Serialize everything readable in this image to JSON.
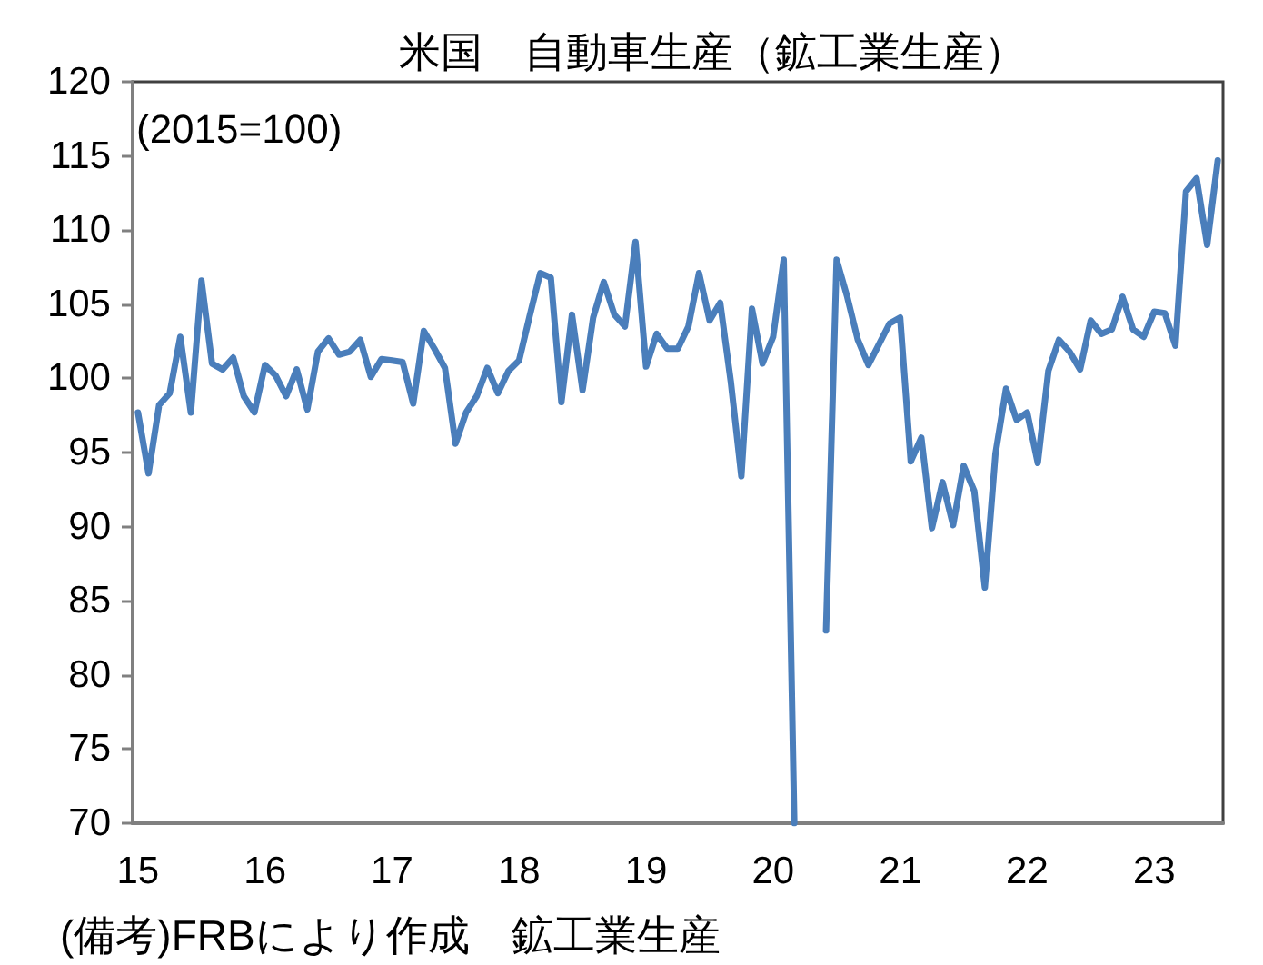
{
  "chart_data": {
    "type": "line",
    "title": "米国　自動車生産（鉱工業生産）",
    "ylabel": "(2015=100)",
    "annotations": [
      "(備考)FRBにより作成　鉱工業生産"
    ],
    "categories": [
      "15",
      null,
      null,
      null,
      null,
      null,
      null,
      null,
      null,
      null,
      null,
      null,
      "16",
      null,
      null,
      null,
      null,
      null,
      null,
      null,
      null,
      null,
      null,
      null,
      "17",
      null,
      null,
      null,
      null,
      null,
      null,
      null,
      null,
      null,
      null,
      null,
      "18",
      null,
      null,
      null,
      null,
      null,
      null,
      null,
      null,
      null,
      null,
      null,
      "19",
      null,
      null,
      null,
      null,
      null,
      null,
      null,
      null,
      null,
      null,
      null,
      "20",
      null,
      null,
      null,
      null,
      null,
      null,
      null,
      null,
      null,
      null,
      null,
      "21",
      null,
      null,
      null,
      null,
      null,
      null,
      null,
      null,
      null,
      null,
      null,
      "22",
      null,
      null,
      null,
      null,
      null,
      null,
      null,
      null,
      null,
      null,
      null,
      "23",
      null,
      null,
      null,
      null,
      null,
      null
    ],
    "series": [
      {
        "color": "#4a7ebb",
        "values": [
          97.7,
          93.6,
          98.2,
          99.0,
          102.8,
          97.7,
          106.6,
          101.0,
          100.6,
          101.4,
          98.8,
          97.7,
          100.9,
          100.2,
          98.8,
          100.6,
          97.9,
          101.8,
          102.7,
          101.6,
          101.8,
          102.6,
          100.1,
          101.3,
          101.2,
          101.1,
          98.3,
          103.2,
          102.0,
          100.7,
          95.6,
          97.7,
          98.8,
          100.7,
          99.0,
          100.5,
          101.2,
          104.2,
          107.1,
          106.8,
          98.4,
          104.3,
          99.2,
          104.1,
          106.5,
          104.3,
          103.5,
          109.2,
          100.8,
          103.0,
          102.0,
          102.0,
          103.5,
          107.1,
          103.9,
          105.1,
          99.8,
          93.4,
          104.7,
          101.0,
          102.8,
          108.0,
          70,
          null,
          null,
          83,
          108.0,
          105.5,
          102.6,
          100.9,
          102.3,
          103.7,
          104.1,
          94.4,
          96.0,
          89.9,
          93.0,
          90.1,
          94.1,
          92.4,
          85.9,
          94.9,
          99.3,
          97.2,
          97.7,
          94.3,
          100.5,
          102.6,
          101.8,
          100.6,
          103.9,
          103.0,
          103.3,
          105.5,
          103.3,
          102.8,
          104.5,
          104.4,
          102.2,
          112.6,
          113.5,
          109.0,
          114.7
        ]
      }
    ],
    "ylim": [
      70,
      120
    ],
    "yticks": [
      70,
      75,
      80,
      85,
      90,
      95,
      100,
      105,
      110,
      115,
      120
    ],
    "grid": false,
    "marker": "none",
    "line_style": "solid"
  }
}
